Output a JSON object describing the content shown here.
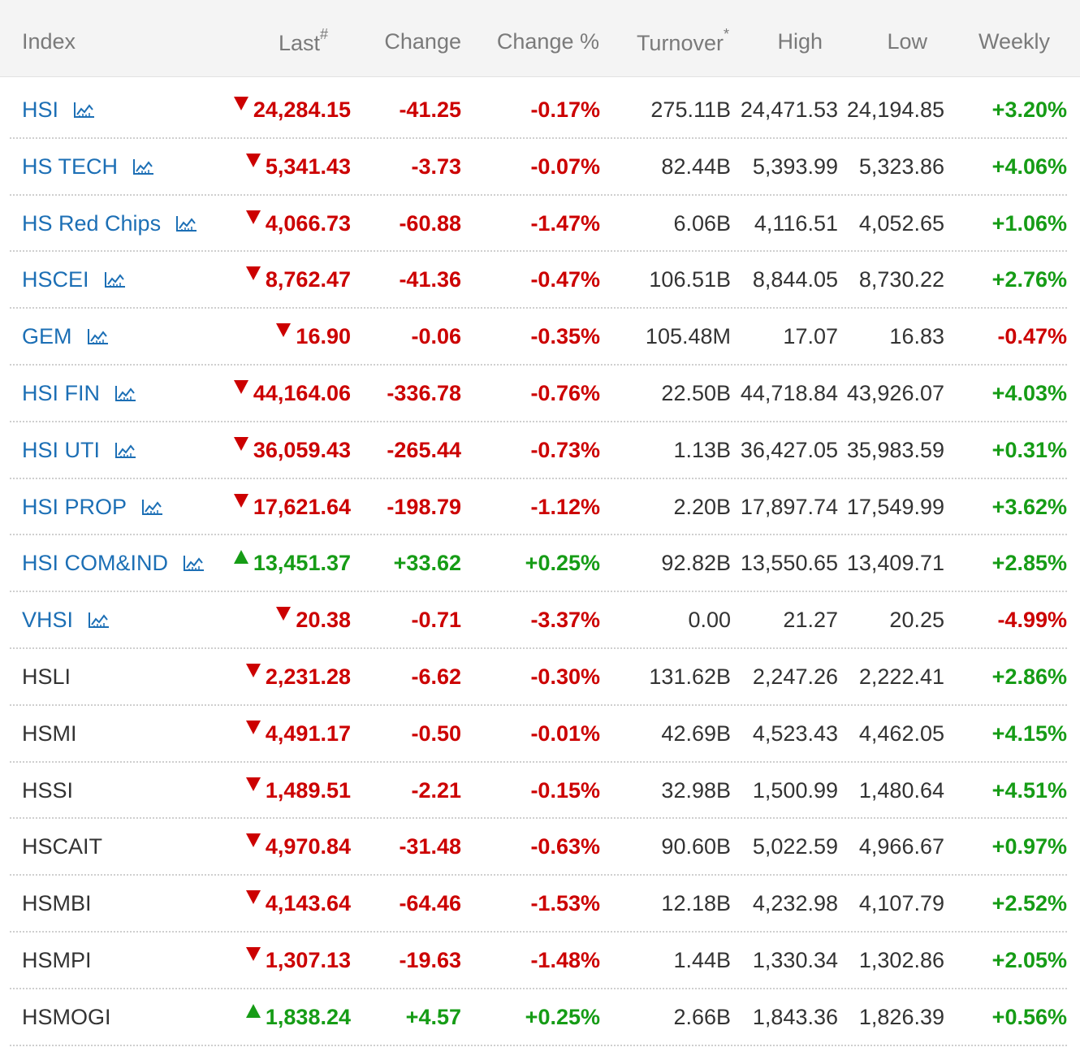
{
  "colors": {
    "down": "#cc0000",
    "up": "#169c16",
    "link": "#1c6fb5",
    "header_bg": "#f4f4f4"
  },
  "header": {
    "index": "Index",
    "last": "Last",
    "last_sup": "#",
    "change": "Change",
    "change_pct": "Change %",
    "turnover": "Turnover",
    "turnover_sup": "*",
    "high": "High",
    "low": "Low",
    "weekly": "Weekly"
  },
  "rows": [
    {
      "name": "HSI",
      "link": true,
      "dir": "down",
      "last": "24,284.15",
      "change": "-41.25",
      "change_pct": "-0.17%",
      "turnover": "275.11B",
      "high": "24,471.53",
      "low": "24,194.85",
      "weekly": "+3.20%",
      "weekly_dir": "up"
    },
    {
      "name": "HS TECH",
      "link": true,
      "dir": "down",
      "last": "5,341.43",
      "change": "-3.73",
      "change_pct": "-0.07%",
      "turnover": "82.44B",
      "high": "5,393.99",
      "low": "5,323.86",
      "weekly": "+4.06%",
      "weekly_dir": "up"
    },
    {
      "name": "HS Red Chips",
      "link": true,
      "dir": "down",
      "last": "4,066.73",
      "change": "-60.88",
      "change_pct": "-1.47%",
      "turnover": "6.06B",
      "high": "4,116.51",
      "low": "4,052.65",
      "weekly": "+1.06%",
      "weekly_dir": "up"
    },
    {
      "name": "HSCEI",
      "link": true,
      "dir": "down",
      "last": "8,762.47",
      "change": "-41.36",
      "change_pct": "-0.47%",
      "turnover": "106.51B",
      "high": "8,844.05",
      "low": "8,730.22",
      "weekly": "+2.76%",
      "weekly_dir": "up"
    },
    {
      "name": "GEM",
      "link": true,
      "dir": "down",
      "last": "16.90",
      "change": "-0.06",
      "change_pct": "-0.35%",
      "turnover": "105.48M",
      "high": "17.07",
      "low": "16.83",
      "weekly": "-0.47%",
      "weekly_dir": "down"
    },
    {
      "name": "HSI FIN",
      "link": true,
      "dir": "down",
      "last": "44,164.06",
      "change": "-336.78",
      "change_pct": "-0.76%",
      "turnover": "22.50B",
      "high": "44,718.84",
      "low": "43,926.07",
      "weekly": "+4.03%",
      "weekly_dir": "up"
    },
    {
      "name": "HSI UTI",
      "link": true,
      "dir": "down",
      "last": "36,059.43",
      "change": "-265.44",
      "change_pct": "-0.73%",
      "turnover": "1.13B",
      "high": "36,427.05",
      "low": "35,983.59",
      "weekly": "+0.31%",
      "weekly_dir": "up"
    },
    {
      "name": "HSI PROP",
      "link": true,
      "dir": "down",
      "last": "17,621.64",
      "change": "-198.79",
      "change_pct": "-1.12%",
      "turnover": "2.20B",
      "high": "17,897.74",
      "low": "17,549.99",
      "weekly": "+3.62%",
      "weekly_dir": "up"
    },
    {
      "name": "HSI COM&IND",
      "link": true,
      "dir": "up",
      "last": "13,451.37",
      "change": "+33.62",
      "change_pct": "+0.25%",
      "turnover": "92.82B",
      "high": "13,550.65",
      "low": "13,409.71",
      "weekly": "+2.85%",
      "weekly_dir": "up"
    },
    {
      "name": "VHSI",
      "link": true,
      "dir": "down",
      "last": "20.38",
      "change": "-0.71",
      "change_pct": "-3.37%",
      "turnover": "0.00",
      "high": "21.27",
      "low": "20.25",
      "weekly": "-4.99%",
      "weekly_dir": "down"
    },
    {
      "name": "HSLI",
      "link": false,
      "dir": "down",
      "last": "2,231.28",
      "change": "-6.62",
      "change_pct": "-0.30%",
      "turnover": "131.62B",
      "high": "2,247.26",
      "low": "2,222.41",
      "weekly": "+2.86%",
      "weekly_dir": "up"
    },
    {
      "name": "HSMI",
      "link": false,
      "dir": "down",
      "last": "4,491.17",
      "change": "-0.50",
      "change_pct": "-0.01%",
      "turnover": "42.69B",
      "high": "4,523.43",
      "low": "4,462.05",
      "weekly": "+4.15%",
      "weekly_dir": "up"
    },
    {
      "name": "HSSI",
      "link": false,
      "dir": "down",
      "last": "1,489.51",
      "change": "-2.21",
      "change_pct": "-0.15%",
      "turnover": "32.98B",
      "high": "1,500.99",
      "low": "1,480.64",
      "weekly": "+4.51%",
      "weekly_dir": "up"
    },
    {
      "name": "HSCAIT",
      "link": false,
      "dir": "down",
      "last": "4,970.84",
      "change": "-31.48",
      "change_pct": "-0.63%",
      "turnover": "90.60B",
      "high": "5,022.59",
      "low": "4,966.67",
      "weekly": "+0.97%",
      "weekly_dir": "up"
    },
    {
      "name": "HSMBI",
      "link": false,
      "dir": "down",
      "last": "4,143.64",
      "change": "-64.46",
      "change_pct": "-1.53%",
      "turnover": "12.18B",
      "high": "4,232.98",
      "low": "4,107.79",
      "weekly": "+2.52%",
      "weekly_dir": "up"
    },
    {
      "name": "HSMPI",
      "link": false,
      "dir": "down",
      "last": "1,307.13",
      "change": "-19.63",
      "change_pct": "-1.48%",
      "turnover": "1.44B",
      "high": "1,330.34",
      "low": "1,302.86",
      "weekly": "+2.05%",
      "weekly_dir": "up"
    },
    {
      "name": "HSMOGI",
      "link": false,
      "dir": "up",
      "last": "1,838.24",
      "change": "+4.57",
      "change_pct": "+0.25%",
      "turnover": "2.66B",
      "high": "1,843.36",
      "low": "1,826.39",
      "weekly": "+0.56%",
      "weekly_dir": "up"
    }
  ]
}
